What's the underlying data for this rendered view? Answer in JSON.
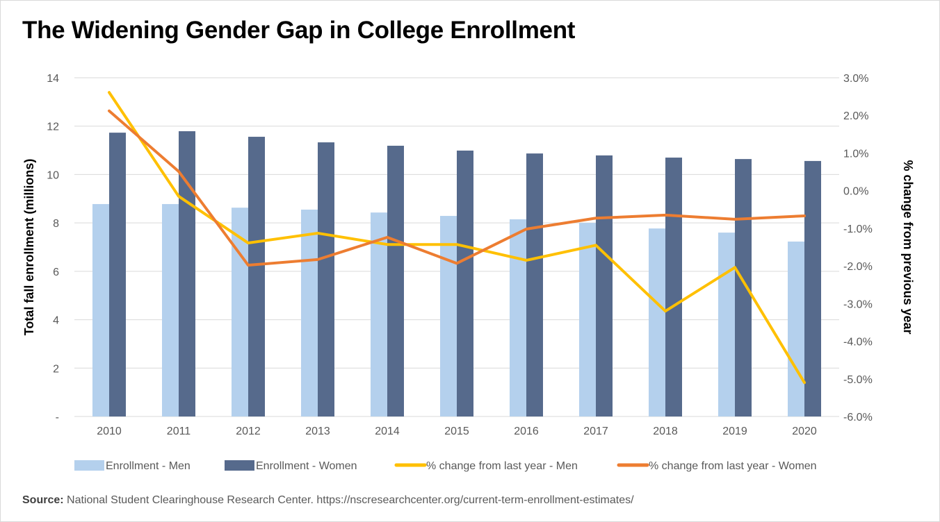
{
  "title": "The Widening Gender Gap in College Enrollment",
  "source_label": "Source:",
  "source_text": "National Student Clearinghouse Research Center. https://nscresearchcenter.org/current-term-enrollment-estimates/",
  "chart_data": {
    "type": "bar+line",
    "title": "The Widening Gender Gap in College Enrollment",
    "categories": [
      "2010",
      "2011",
      "2012",
      "2013",
      "2014",
      "2015",
      "2016",
      "2017",
      "2018",
      "2019",
      "2020"
    ],
    "ylabel": "Total fall enrollment (millions)",
    "y2label": "% change from previous year",
    "ylim": [
      0,
      14
    ],
    "y2lim": [
      -6.0,
      3.0
    ],
    "yticks": [
      "-",
      "2",
      "4",
      "6",
      "8",
      "10",
      "12",
      "14"
    ],
    "y2ticks": [
      "-6.0%",
      "-5.0%",
      "-4.0%",
      "-3.0%",
      "-2.0%",
      "-1.0%",
      "0.0%",
      "1.0%",
      "2.0%",
      "3.0%"
    ],
    "grid": true,
    "legend": "bottom",
    "series": [
      {
        "name": "Enrollment - Men",
        "type": "bar",
        "axis": "left",
        "color": "#b4d0ed",
        "values": [
          8.78,
          8.78,
          8.63,
          8.55,
          8.43,
          8.29,
          8.15,
          8.0,
          7.77,
          7.6,
          7.23
        ]
      },
      {
        "name": "Enrollment - Women",
        "type": "bar",
        "axis": "left",
        "color": "#566a8c",
        "values": [
          11.73,
          11.79,
          11.56,
          11.33,
          11.19,
          10.99,
          10.87,
          10.79,
          10.7,
          10.64,
          10.56
        ]
      },
      {
        "name": "% change from last year - Men",
        "type": "line",
        "axis": "right",
        "color": "#ffc000",
        "values": [
          2.61,
          -0.15,
          -1.39,
          -1.13,
          -1.43,
          -1.43,
          -1.85,
          -1.45,
          -3.2,
          -2.04,
          -5.1
        ]
      },
      {
        "name": "% change from last year - Women",
        "type": "line",
        "axis": "right",
        "color": "#ed7d31",
        "values": [
          2.12,
          0.51,
          -1.98,
          -1.83,
          -1.24,
          -1.93,
          -1.02,
          -0.73,
          -0.65,
          -0.76,
          -0.67
        ]
      }
    ]
  }
}
